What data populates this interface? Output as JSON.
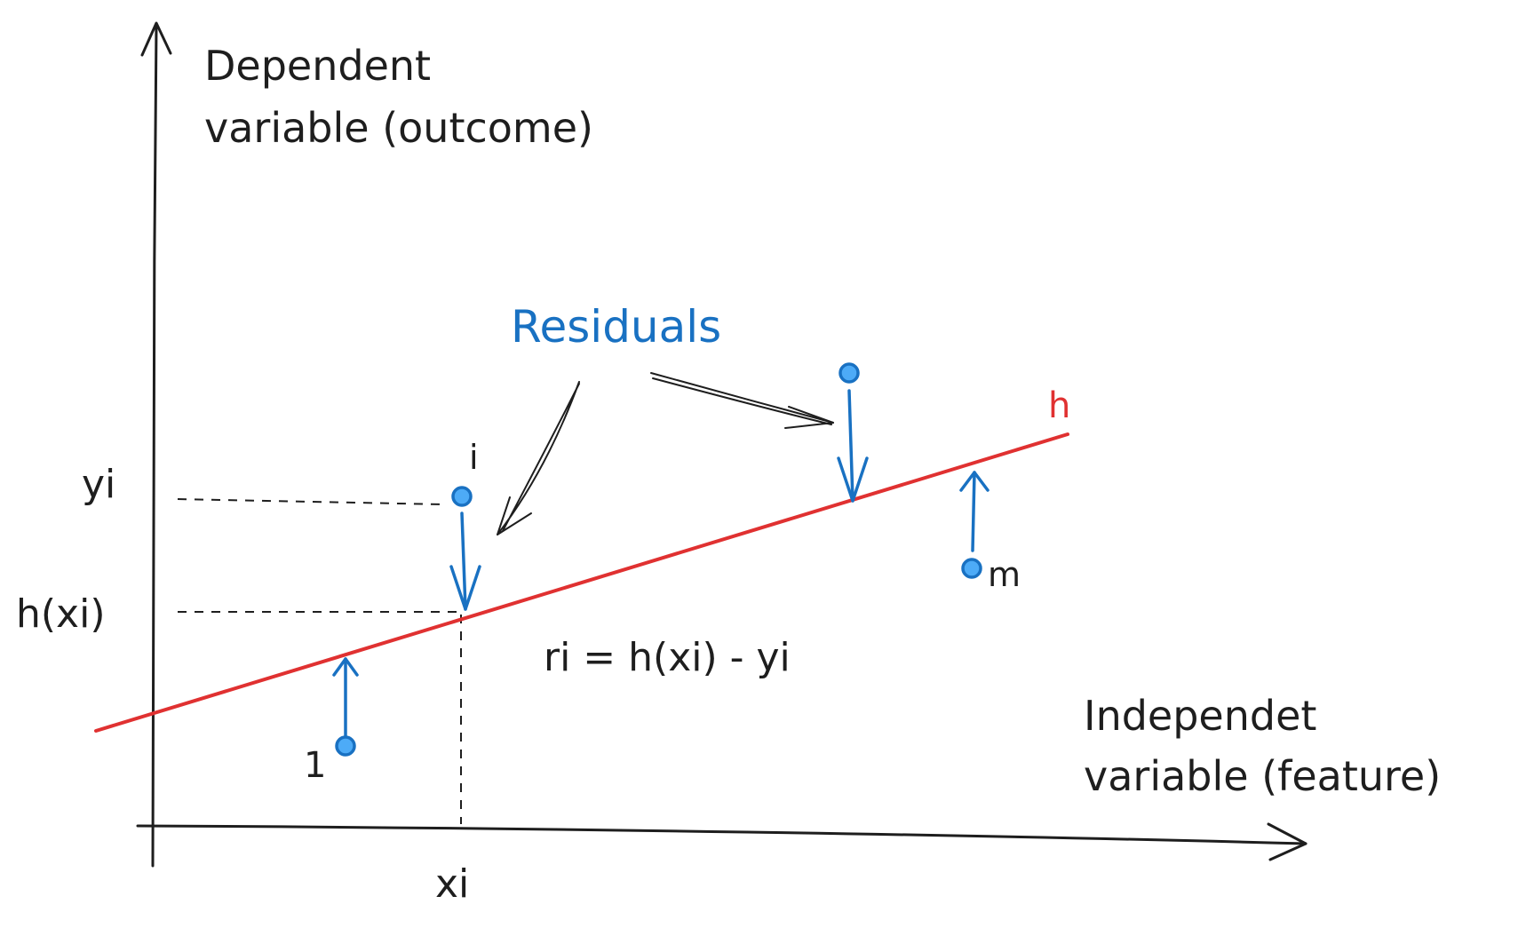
{
  "colors": {
    "ink": "#1e1e1e",
    "accent_blue": "#1971c2",
    "regression_red": "#e03131",
    "point_fill": "#4dabf7"
  },
  "axes": {
    "y_label_line1": "Dependent",
    "y_label_line2": "variable (outcome)",
    "x_label_line1": "Independet",
    "x_label_line2": "variable (feature)"
  },
  "ticks": {
    "yi": "yi",
    "hxi": "h(xi)",
    "xi": "xi"
  },
  "annotations": {
    "residuals": "Residuals",
    "line_label": "h",
    "formula": "ri = h(xi) - yi"
  },
  "points": [
    {
      "label": "1",
      "type": "below-line"
    },
    {
      "label": "i",
      "type": "above-line"
    },
    {
      "label": "",
      "type": "above-line"
    },
    {
      "label": "m",
      "type": "below-line"
    }
  ]
}
